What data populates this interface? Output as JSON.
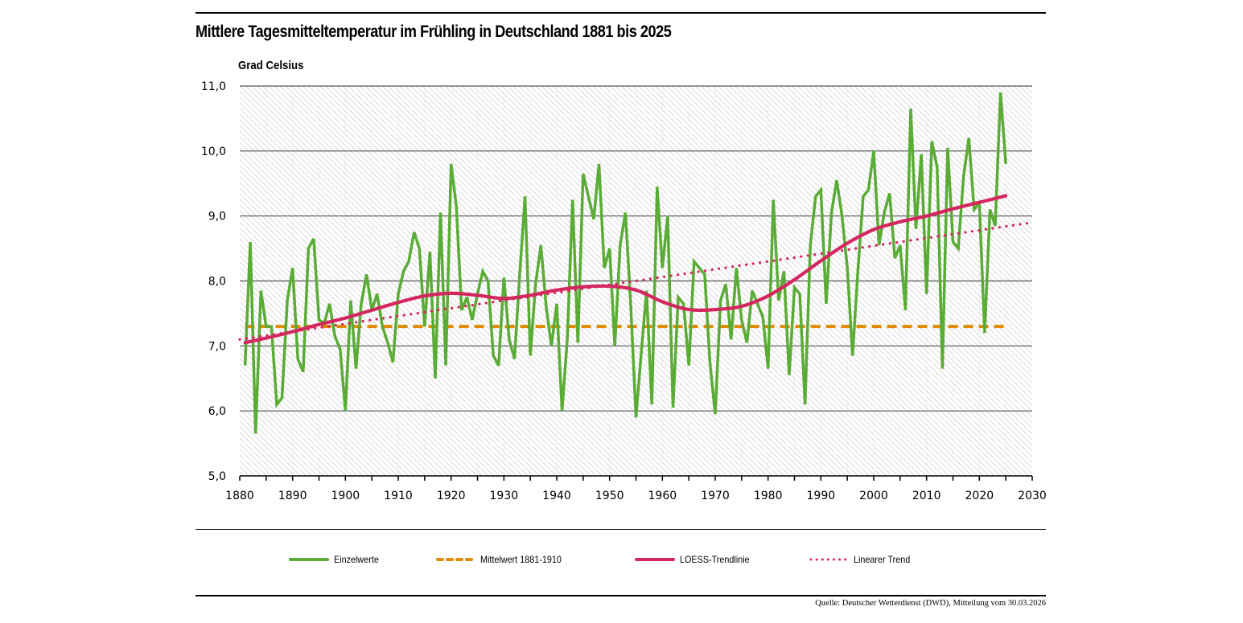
{
  "title": "Mittlere Tagesmitteltemperatur im Frühling in Deutschland 1881 bis 2025",
  "source": "Quelle: Deutscher Wetterdienst (DWD), Mitteilung vom 30.03.2026",
  "colors": {
    "einzelwerte": "#5aac36",
    "mittelwert": "#e08a00",
    "loess": "#d4265f",
    "linear": "#d4265f",
    "grid": "#555555",
    "hatch": "#c8c8c8"
  },
  "chart_data": {
    "type": "line",
    "title": "Mittlere Tagesmitteltemperatur im Frühling in Deutschland 1881 bis 2025",
    "xlabel": "",
    "ylabel": "Grad Celsius",
    "xlim": [
      1880,
      2030
    ],
    "ylim": [
      5.0,
      11.0
    ],
    "x_ticks": [
      "1880",
      "1890",
      "1900",
      "1910",
      "1920",
      "1930",
      "1940",
      "1950",
      "1960",
      "1970",
      "1980",
      "1990",
      "2000",
      "2010",
      "2020",
      "2030"
    ],
    "x_tick_values": [
      1880,
      1890,
      1900,
      1910,
      1920,
      1930,
      1940,
      1950,
      1960,
      1970,
      1980,
      1990,
      2000,
      2010,
      2020,
      2030
    ],
    "y_ticks": [
      "5,0",
      "6,0",
      "7,0",
      "8,0",
      "9,0",
      "10,0",
      "11,0"
    ],
    "y_tick_values": [
      5,
      6,
      7,
      8,
      9,
      10,
      11
    ],
    "grid": "horizontal",
    "legend_position": "bottom",
    "legend": [
      "Einzelwerte",
      "Mittelwert 1881-1910",
      "LOESS-Trendlinie",
      "Linearer Trend"
    ],
    "series": [
      {
        "name": "Einzelwerte",
        "style": "solid",
        "x_start": 1881,
        "values": [
          6.7,
          8.6,
          5.65,
          7.85,
          7.3,
          7.3,
          6.1,
          6.2,
          7.7,
          8.2,
          6.8,
          6.6,
          8.5,
          8.65,
          7.4,
          7.35,
          7.65,
          7.15,
          6.95,
          6.0,
          7.7,
          6.65,
          7.65,
          8.1,
          7.55,
          7.8,
          7.3,
          7.05,
          6.75,
          7.8,
          8.15,
          8.3,
          8.75,
          8.5,
          7.3,
          8.45,
          6.5,
          9.05,
          6.7,
          9.8,
          9.15,
          7.55,
          7.75,
          7.4,
          7.8,
          8.15,
          8.0,
          6.85,
          6.7,
          8.05,
          7.1,
          6.8,
          8.1,
          9.3,
          6.85,
          7.95,
          8.55,
          7.6,
          7.0,
          7.65,
          6.0,
          7.1,
          9.25,
          7.05,
          9.65,
          9.3,
          8.95,
          9.8,
          8.2,
          8.5,
          7.0,
          8.55,
          9.05,
          7.65,
          5.9,
          6.9,
          7.85,
          6.1,
          9.45,
          8.2,
          9.0,
          6.05,
          7.75,
          7.65,
          6.7,
          8.3,
          8.2,
          8.1,
          6.75,
          5.95,
          7.7,
          7.95,
          7.1,
          8.2,
          7.4,
          7.05,
          7.85,
          7.65,
          7.45,
          6.65,
          9.25,
          7.7,
          8.15,
          6.55,
          7.9,
          7.8,
          6.1,
          8.55,
          9.3,
          9.4,
          7.65,
          9.05,
          9.55,
          9.0,
          8.2,
          6.85,
          8.15,
          9.3,
          9.4,
          10.0,
          8.55,
          9.05,
          9.35,
          8.35,
          8.55,
          7.55,
          10.65,
          8.8,
          9.95,
          7.8,
          10.15,
          9.75,
          6.65,
          10.05,
          8.6,
          8.5,
          9.6,
          10.2,
          9.1,
          9.2,
          7.2,
          9.1,
          8.85,
          10.9,
          9.8
        ]
      },
      {
        "name": "Mittelwert 1881-1910",
        "style": "dashed",
        "x": [
          1881,
          2025
        ],
        "values": [
          7.3,
          7.3
        ]
      },
      {
        "name": "LOESS-Trendlinie",
        "style": "solid",
        "x": [
          1881,
          1885,
          1890,
          1895,
          1900,
          1905,
          1910,
          1915,
          1920,
          1925,
          1930,
          1935,
          1940,
          1945,
          1950,
          1955,
          1960,
          1965,
          1970,
          1975,
          1980,
          1985,
          1990,
          1995,
          2000,
          2005,
          2010,
          2015,
          2020,
          2025
        ],
        "values": [
          7.05,
          7.12,
          7.22,
          7.33,
          7.43,
          7.55,
          7.67,
          7.77,
          7.81,
          7.78,
          7.73,
          7.78,
          7.86,
          7.91,
          7.92,
          7.86,
          7.68,
          7.56,
          7.56,
          7.61,
          7.77,
          8.02,
          8.31,
          8.58,
          8.79,
          8.91,
          9.0,
          9.11,
          9.21,
          9.31
        ]
      },
      {
        "name": "Linearer Trend",
        "style": "dotted",
        "x": [
          1880,
          2030
        ],
        "values": [
          7.1,
          8.9
        ]
      }
    ]
  },
  "legend": {
    "items": [
      {
        "label": "Einzelwerte"
      },
      {
        "label": "Mittelwert 1881-1910"
      },
      {
        "label": "LOESS-Trendlinie"
      },
      {
        "label": "Linearer Trend"
      }
    ]
  }
}
